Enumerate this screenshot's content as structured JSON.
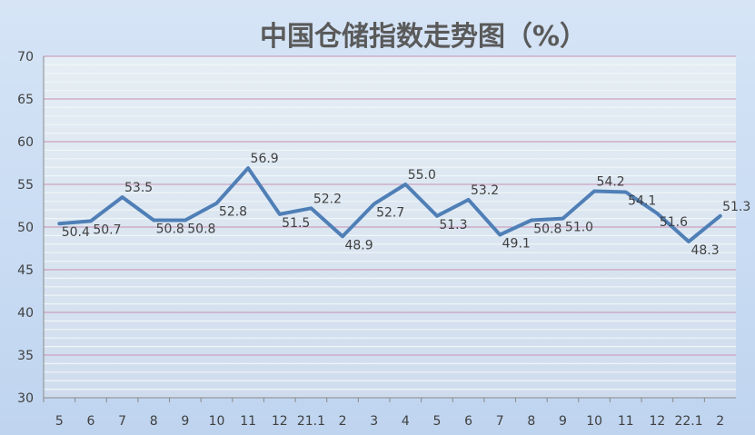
{
  "chart_data": {
    "type": "line",
    "title": "中国仓储指数走势图（%）",
    "xlabel": "",
    "ylabel": "",
    "ylim": [
      30,
      70
    ],
    "yticks": [
      "30",
      "35",
      "40",
      "45",
      "50",
      "55",
      "60",
      "65",
      "70"
    ],
    "categories": [
      "5",
      "6",
      "7",
      "8",
      "9",
      "10",
      "11",
      "12",
      "21.1",
      "2",
      "3",
      "4",
      "5",
      "6",
      "7",
      "8",
      "9",
      "10",
      "11",
      "12",
      "22.1",
      "2"
    ],
    "series": [
      {
        "name": "",
        "values": [
          50.4,
          50.7,
          53.5,
          50.8,
          50.8,
          52.8,
          56.9,
          51.5,
          52.2,
          48.9,
          52.7,
          55.0,
          51.3,
          53.2,
          49.1,
          50.8,
          51.0,
          54.2,
          54.1,
          51.6,
          48.3,
          51.3
        ],
        "labels": [
          "50.4",
          "50.7",
          "53.5",
          "50.8",
          "50.8",
          "52.8",
          "56.9",
          "51.5",
          "52.2",
          "48.9",
          "52.7",
          "55.0",
          "51.3",
          "53.2",
          "49.1",
          "50.8",
          "51.0",
          "54.2",
          "54.1",
          "51.6",
          "48.3",
          "51.3"
        ]
      }
    ],
    "grid": true,
    "legend": "none",
    "colors": {
      "line": "#4f7fb6",
      "grid_major": "#c98fb4",
      "grid_minor": "#f0f6f8",
      "axis": "#7f7f7f",
      "text": "#404040"
    }
  }
}
